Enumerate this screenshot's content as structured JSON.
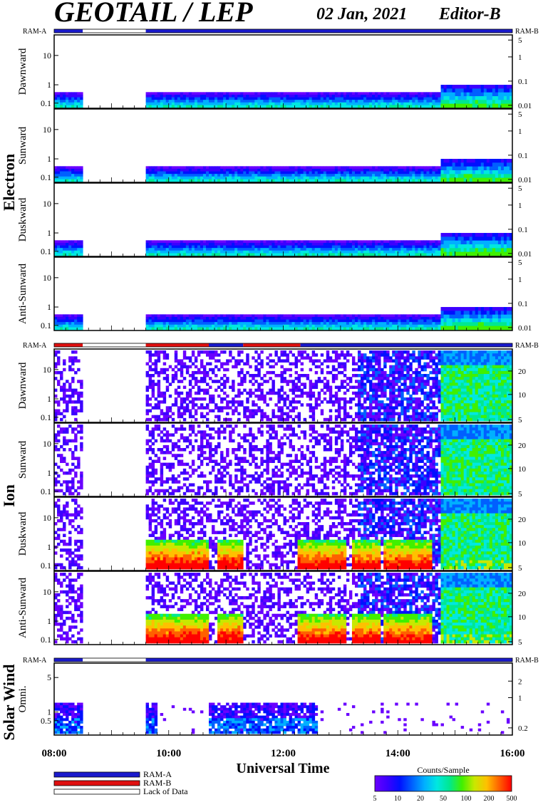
{
  "header": {
    "title": "GEOTAIL / LEP",
    "date": "02 Jan, 2021",
    "editor": "Editor-B"
  },
  "bar_labels": {
    "ram_a": "RAM-A",
    "ram_b": "RAM-B"
  },
  "groups": [
    {
      "name": "Electron"
    },
    {
      "name": "Ion"
    },
    {
      "name": "Solar Wind"
    }
  ],
  "colors": {
    "ram_a": "#1a1acc",
    "ram_b": "#e01010",
    "lack_of_data": "#ffffff",
    "colormap": [
      "#6a00ff",
      "#3c00ff",
      "#0010ff",
      "#0060ff",
      "#00b0ff",
      "#00e8e0",
      "#00e890",
      "#40f000",
      "#c8e800",
      "#ffc000",
      "#ff6000",
      "#ff0000"
    ]
  },
  "legend": {
    "items": [
      {
        "label": "RAM-A",
        "color": "#1a1acc"
      },
      {
        "label": "RAM-B",
        "color": "#e01010"
      },
      {
        "label": "Lack of Data",
        "color": "#ffffff"
      }
    ],
    "colorbar_title": "Counts/Sample",
    "colorbar_ticks": [
      "5",
      "10",
      "20",
      "50",
      "100",
      "200",
      "500"
    ]
  },
  "chart_data": {
    "type": "heatmap",
    "xlabel": "Universal Time",
    "x_ticks": [
      "08:00",
      "10:00",
      "12:00",
      "14:00",
      "16:00"
    ],
    "x_range_hours": [
      8,
      16
    ],
    "data_gap_hours": [
      8.5,
      9.6
    ],
    "panels": [
      {
        "group": "Electron",
        "ylabel": "Dawnward",
        "left_ticks": [
          "10",
          "1",
          "0.1"
        ],
        "right_ticks": [
          "5",
          "1",
          "0.1",
          "0.01"
        ],
        "level": "low",
        "enhanced_after": 14.75
      },
      {
        "group": "Electron",
        "ylabel": "Sunward",
        "left_ticks": [
          "10",
          "1",
          "0.1"
        ],
        "right_ticks": [
          "5",
          "1",
          "0.1",
          "0.01"
        ],
        "level": "low",
        "enhanced_after": 14.75
      },
      {
        "group": "Electron",
        "ylabel": "Duskward",
        "left_ticks": [
          "10",
          "1",
          "0.1"
        ],
        "right_ticks": [
          "5",
          "1",
          "0.1",
          "0.01"
        ],
        "level": "low",
        "enhanced_after": 14.75
      },
      {
        "group": "Electron",
        "ylabel": "Anti-Sunward",
        "left_ticks": [
          "10",
          "1",
          "0.1"
        ],
        "right_ticks": [
          "5",
          "1",
          "0.1",
          "0.01"
        ],
        "level": "low",
        "enhanced_after": 14.75
      },
      {
        "group": "Ion",
        "ylabel": "Dawnward",
        "left_ticks": [
          "10",
          "1",
          "0.1"
        ],
        "right_ticks": [
          "20",
          "10",
          "5"
        ],
        "level": "sparse",
        "enhanced_after": 14.75
      },
      {
        "group": "Ion",
        "ylabel": "Sunward",
        "left_ticks": [
          "10",
          "1",
          "0.1"
        ],
        "right_ticks": [
          "20",
          "10",
          "5"
        ],
        "level": "sparse",
        "enhanced_after": 14.75
      },
      {
        "group": "Ion",
        "ylabel": "Duskward",
        "left_ticks": [
          "10",
          "1",
          "0.1"
        ],
        "right_ticks": [
          "20",
          "10",
          "5"
        ],
        "level": "bursty",
        "enhanced_after": 14.75
      },
      {
        "group": "Ion",
        "ylabel": "Anti-Sunward",
        "left_ticks": [
          "10",
          "1",
          "0.1"
        ],
        "right_ticks": [
          "20",
          "10",
          "5"
        ],
        "level": "bursty",
        "enhanced_after": 14.75
      },
      {
        "group": "Solar Wind",
        "ylabel": "Omni.",
        "left_ticks": [
          "5",
          "1",
          "0.5"
        ],
        "right_ticks": [
          "2",
          "1",
          "0.2"
        ],
        "level": "solarwind",
        "enhanced_after": 16
      }
    ],
    "ram_bars": [
      {
        "segments": [
          {
            "from": 8,
            "to": 8.5,
            "mode": "ram_a"
          },
          {
            "from": 8.5,
            "to": 9.6,
            "mode": "lack_of_data"
          },
          {
            "from": 9.6,
            "to": 16,
            "mode": "ram_a"
          }
        ]
      },
      {
        "segments": [
          {
            "from": 8,
            "to": 8.5,
            "mode": "ram_b"
          },
          {
            "from": 8.5,
            "to": 9.6,
            "mode": "lack_of_data"
          },
          {
            "from": 9.6,
            "to": 10.7,
            "mode": "ram_b"
          },
          {
            "from": 10.7,
            "to": 11.3,
            "mode": "ram_a"
          },
          {
            "from": 11.3,
            "to": 12.3,
            "mode": "ram_b"
          },
          {
            "from": 12.3,
            "to": 16,
            "mode": "ram_a"
          }
        ]
      },
      {
        "segments": [
          {
            "from": 8,
            "to": 8.5,
            "mode": "ram_a"
          },
          {
            "from": 8.5,
            "to": 9.6,
            "mode": "lack_of_data"
          },
          {
            "from": 9.6,
            "to": 16,
            "mode": "ram_a"
          }
        ]
      }
    ]
  }
}
